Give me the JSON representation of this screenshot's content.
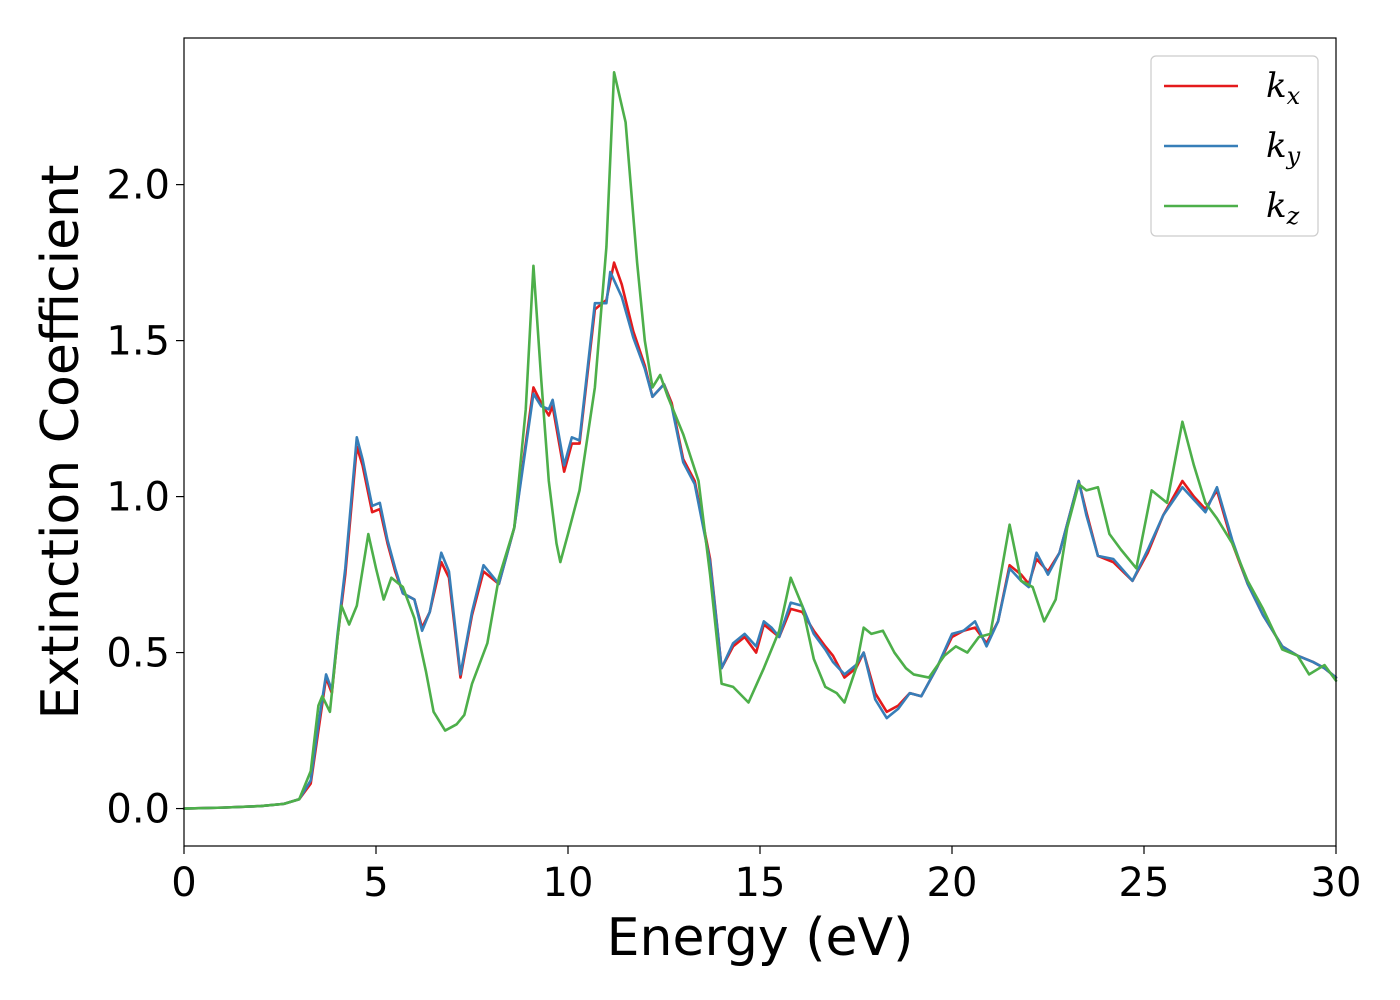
{
  "chart_data": {
    "type": "line",
    "xlabel": "Energy (eV)",
    "ylabel": "Extinction Coefficient",
    "xlim": [
      0,
      30
    ],
    "ylim": [
      -0.12,
      2.47
    ],
    "xticks": [
      "0",
      "5",
      "10",
      "15",
      "20",
      "25",
      "30"
    ],
    "yticks": [
      "0.0",
      "0.5",
      "1.0",
      "1.5",
      "2.0"
    ],
    "grid": false,
    "legend": "top-right",
    "series": [
      {
        "name": "kx",
        "base": "k",
        "sub": "x",
        "color": "#e41a1c",
        "points": [
          [
            0,
            0
          ],
          [
            1,
            0.003
          ],
          [
            2,
            0.008
          ],
          [
            2.6,
            0.015
          ],
          [
            3.0,
            0.03
          ],
          [
            3.3,
            0.08
          ],
          [
            3.5,
            0.25
          ],
          [
            3.7,
            0.42
          ],
          [
            3.85,
            0.37
          ],
          [
            4.0,
            0.55
          ],
          [
            4.2,
            0.75
          ],
          [
            4.5,
            1.16
          ],
          [
            4.65,
            1.1
          ],
          [
            4.9,
            0.95
          ],
          [
            5.1,
            0.96
          ],
          [
            5.3,
            0.85
          ],
          [
            5.5,
            0.76
          ],
          [
            5.7,
            0.69
          ],
          [
            6.0,
            0.67
          ],
          [
            6.2,
            0.58
          ],
          [
            6.4,
            0.63
          ],
          [
            6.7,
            0.79
          ],
          [
            6.9,
            0.74
          ],
          [
            7.2,
            0.42
          ],
          [
            7.5,
            0.62
          ],
          [
            7.8,
            0.76
          ],
          [
            8.0,
            0.74
          ],
          [
            8.2,
            0.72
          ],
          [
            8.6,
            0.9
          ],
          [
            9.1,
            1.35
          ],
          [
            9.3,
            1.3
          ],
          [
            9.5,
            1.26
          ],
          [
            9.6,
            1.29
          ],
          [
            9.9,
            1.08
          ],
          [
            10.1,
            1.17
          ],
          [
            10.3,
            1.17
          ],
          [
            10.7,
            1.6
          ],
          [
            11.0,
            1.63
          ],
          [
            11.2,
            1.75
          ],
          [
            11.4,
            1.68
          ],
          [
            11.7,
            1.53
          ],
          [
            12.0,
            1.42
          ],
          [
            12.2,
            1.32
          ],
          [
            12.5,
            1.36
          ],
          [
            12.7,
            1.3
          ],
          [
            13.0,
            1.12
          ],
          [
            13.3,
            1.05
          ],
          [
            13.7,
            0.8
          ],
          [
            14.0,
            0.45
          ],
          [
            14.3,
            0.52
          ],
          [
            14.6,
            0.55
          ],
          [
            14.9,
            0.5
          ],
          [
            15.1,
            0.59
          ],
          [
            15.3,
            0.57
          ],
          [
            15.5,
            0.55
          ],
          [
            15.8,
            0.64
          ],
          [
            16.1,
            0.63
          ],
          [
            16.4,
            0.57
          ],
          [
            16.7,
            0.52
          ],
          [
            16.9,
            0.49
          ],
          [
            17.2,
            0.42
          ],
          [
            17.5,
            0.45
          ],
          [
            17.7,
            0.5
          ],
          [
            18.0,
            0.37
          ],
          [
            18.3,
            0.31
          ],
          [
            18.6,
            0.33
          ],
          [
            18.9,
            0.37
          ],
          [
            19.2,
            0.36
          ],
          [
            19.6,
            0.45
          ],
          [
            20.0,
            0.55
          ],
          [
            20.3,
            0.57
          ],
          [
            20.6,
            0.58
          ],
          [
            20.9,
            0.53
          ],
          [
            21.2,
            0.6
          ],
          [
            21.5,
            0.78
          ],
          [
            21.8,
            0.75
          ],
          [
            22.0,
            0.72
          ],
          [
            22.2,
            0.8
          ],
          [
            22.5,
            0.76
          ],
          [
            22.8,
            0.82
          ],
          [
            23.3,
            1.05
          ],
          [
            23.5,
            0.95
          ],
          [
            23.8,
            0.81
          ],
          [
            24.2,
            0.79
          ],
          [
            24.7,
            0.73
          ],
          [
            25.1,
            0.82
          ],
          [
            25.5,
            0.94
          ],
          [
            26.0,
            1.05
          ],
          [
            26.3,
            1.0
          ],
          [
            26.6,
            0.96
          ],
          [
            26.9,
            1.02
          ],
          [
            27.3,
            0.85
          ],
          [
            27.7,
            0.72
          ],
          [
            28.1,
            0.62
          ],
          [
            28.6,
            0.52
          ],
          [
            29.0,
            0.49
          ],
          [
            29.4,
            0.47
          ],
          [
            29.7,
            0.45
          ],
          [
            30.0,
            0.42
          ]
        ]
      },
      {
        "name": "ky",
        "base": "k",
        "sub": "y",
        "color": "#377eb8",
        "points": [
          [
            0,
            0
          ],
          [
            1,
            0.003
          ],
          [
            2,
            0.008
          ],
          [
            2.6,
            0.015
          ],
          [
            3.0,
            0.03
          ],
          [
            3.3,
            0.09
          ],
          [
            3.5,
            0.27
          ],
          [
            3.7,
            0.43
          ],
          [
            3.85,
            0.38
          ],
          [
            4.0,
            0.56
          ],
          [
            4.2,
            0.77
          ],
          [
            4.5,
            1.19
          ],
          [
            4.65,
            1.12
          ],
          [
            4.9,
            0.97
          ],
          [
            5.1,
            0.98
          ],
          [
            5.3,
            0.86
          ],
          [
            5.5,
            0.77
          ],
          [
            5.7,
            0.69
          ],
          [
            6.0,
            0.67
          ],
          [
            6.2,
            0.57
          ],
          [
            6.4,
            0.63
          ],
          [
            6.7,
            0.82
          ],
          [
            6.9,
            0.76
          ],
          [
            7.2,
            0.43
          ],
          [
            7.5,
            0.63
          ],
          [
            7.8,
            0.78
          ],
          [
            8.0,
            0.75
          ],
          [
            8.2,
            0.72
          ],
          [
            8.6,
            0.9
          ],
          [
            9.1,
            1.33
          ],
          [
            9.3,
            1.29
          ],
          [
            9.5,
            1.28
          ],
          [
            9.6,
            1.31
          ],
          [
            9.9,
            1.1
          ],
          [
            10.1,
            1.19
          ],
          [
            10.3,
            1.18
          ],
          [
            10.7,
            1.62
          ],
          [
            11.0,
            1.62
          ],
          [
            11.1,
            1.72
          ],
          [
            11.4,
            1.64
          ],
          [
            11.7,
            1.51
          ],
          [
            12.0,
            1.41
          ],
          [
            12.2,
            1.32
          ],
          [
            12.5,
            1.36
          ],
          [
            12.7,
            1.29
          ],
          [
            13.0,
            1.11
          ],
          [
            13.3,
            1.04
          ],
          [
            13.7,
            0.79
          ],
          [
            14.0,
            0.45
          ],
          [
            14.3,
            0.53
          ],
          [
            14.6,
            0.56
          ],
          [
            14.9,
            0.52
          ],
          [
            15.1,
            0.6
          ],
          [
            15.3,
            0.58
          ],
          [
            15.5,
            0.55
          ],
          [
            15.8,
            0.66
          ],
          [
            16.1,
            0.65
          ],
          [
            16.4,
            0.56
          ],
          [
            16.7,
            0.51
          ],
          [
            16.9,
            0.47
          ],
          [
            17.2,
            0.43
          ],
          [
            17.5,
            0.46
          ],
          [
            17.7,
            0.5
          ],
          [
            18.0,
            0.35
          ],
          [
            18.3,
            0.29
          ],
          [
            18.6,
            0.32
          ],
          [
            18.9,
            0.37
          ],
          [
            19.2,
            0.36
          ],
          [
            19.6,
            0.45
          ],
          [
            20.0,
            0.56
          ],
          [
            20.3,
            0.57
          ],
          [
            20.6,
            0.6
          ],
          [
            20.9,
            0.52
          ],
          [
            21.2,
            0.6
          ],
          [
            21.5,
            0.77
          ],
          [
            21.8,
            0.73
          ],
          [
            22.0,
            0.71
          ],
          [
            22.2,
            0.82
          ],
          [
            22.5,
            0.75
          ],
          [
            22.8,
            0.82
          ],
          [
            23.3,
            1.05
          ],
          [
            23.5,
            0.94
          ],
          [
            23.8,
            0.81
          ],
          [
            24.2,
            0.8
          ],
          [
            24.7,
            0.73
          ],
          [
            25.1,
            0.83
          ],
          [
            25.5,
            0.94
          ],
          [
            26.0,
            1.03
          ],
          [
            26.3,
            0.99
          ],
          [
            26.6,
            0.95
          ],
          [
            26.9,
            1.03
          ],
          [
            27.3,
            0.86
          ],
          [
            27.7,
            0.72
          ],
          [
            28.1,
            0.62
          ],
          [
            28.6,
            0.52
          ],
          [
            29.0,
            0.49
          ],
          [
            29.4,
            0.47
          ],
          [
            29.7,
            0.45
          ],
          [
            30.0,
            0.42
          ]
        ]
      },
      {
        "name": "kz",
        "base": "k",
        "sub": "z",
        "color": "#4daf4a",
        "points": [
          [
            0,
            0
          ],
          [
            1,
            0.003
          ],
          [
            2,
            0.008
          ],
          [
            2.6,
            0.015
          ],
          [
            3.0,
            0.03
          ],
          [
            3.3,
            0.12
          ],
          [
            3.5,
            0.33
          ],
          [
            3.6,
            0.36
          ],
          [
            3.8,
            0.31
          ],
          [
            4.0,
            0.55
          ],
          [
            4.1,
            0.65
          ],
          [
            4.3,
            0.59
          ],
          [
            4.5,
            0.65
          ],
          [
            4.8,
            0.88
          ],
          [
            5.0,
            0.77
          ],
          [
            5.2,
            0.67
          ],
          [
            5.4,
            0.74
          ],
          [
            5.7,
            0.71
          ],
          [
            6.0,
            0.61
          ],
          [
            6.3,
            0.44
          ],
          [
            6.5,
            0.31
          ],
          [
            6.8,
            0.25
          ],
          [
            7.1,
            0.27
          ],
          [
            7.3,
            0.3
          ],
          [
            7.5,
            0.4
          ],
          [
            7.9,
            0.53
          ],
          [
            8.2,
            0.74
          ],
          [
            8.6,
            0.9
          ],
          [
            8.9,
            1.28
          ],
          [
            9.1,
            1.74
          ],
          [
            9.3,
            1.38
          ],
          [
            9.5,
            1.05
          ],
          [
            9.7,
            0.85
          ],
          [
            9.8,
            0.79
          ],
          [
            10.0,
            0.88
          ],
          [
            10.3,
            1.02
          ],
          [
            10.7,
            1.35
          ],
          [
            11.0,
            1.8
          ],
          [
            11.2,
            2.36
          ],
          [
            11.5,
            2.2
          ],
          [
            11.8,
            1.75
          ],
          [
            12.0,
            1.5
          ],
          [
            12.2,
            1.35
          ],
          [
            12.4,
            1.39
          ],
          [
            12.6,
            1.32
          ],
          [
            13.0,
            1.2
          ],
          [
            13.4,
            1.05
          ],
          [
            13.7,
            0.75
          ],
          [
            14.0,
            0.4
          ],
          [
            14.3,
            0.39
          ],
          [
            14.7,
            0.34
          ],
          [
            15.1,
            0.45
          ],
          [
            15.5,
            0.57
          ],
          [
            15.8,
            0.74
          ],
          [
            16.1,
            0.65
          ],
          [
            16.4,
            0.48
          ],
          [
            16.7,
            0.39
          ],
          [
            17.0,
            0.37
          ],
          [
            17.2,
            0.34
          ],
          [
            17.5,
            0.45
          ],
          [
            17.7,
            0.58
          ],
          [
            17.9,
            0.56
          ],
          [
            18.2,
            0.57
          ],
          [
            18.5,
            0.5
          ],
          [
            18.8,
            0.45
          ],
          [
            19.0,
            0.43
          ],
          [
            19.4,
            0.42
          ],
          [
            19.8,
            0.49
          ],
          [
            20.1,
            0.52
          ],
          [
            20.4,
            0.5
          ],
          [
            20.7,
            0.55
          ],
          [
            21.0,
            0.56
          ],
          [
            21.3,
            0.77
          ],
          [
            21.5,
            0.91
          ],
          [
            21.8,
            0.73
          ],
          [
            22.1,
            0.71
          ],
          [
            22.4,
            0.6
          ],
          [
            22.7,
            0.67
          ],
          [
            23.0,
            0.9
          ],
          [
            23.3,
            1.04
          ],
          [
            23.5,
            1.02
          ],
          [
            23.8,
            1.03
          ],
          [
            24.1,
            0.88
          ],
          [
            24.4,
            0.83
          ],
          [
            24.8,
            0.77
          ],
          [
            25.2,
            1.02
          ],
          [
            25.6,
            0.98
          ],
          [
            26.0,
            1.24
          ],
          [
            26.3,
            1.1
          ],
          [
            26.6,
            0.98
          ],
          [
            26.9,
            0.93
          ],
          [
            27.3,
            0.85
          ],
          [
            27.7,
            0.73
          ],
          [
            28.1,
            0.64
          ],
          [
            28.6,
            0.51
          ],
          [
            29.0,
            0.49
          ],
          [
            29.3,
            0.43
          ],
          [
            29.7,
            0.46
          ],
          [
            30.0,
            0.41
          ]
        ]
      }
    ]
  }
}
